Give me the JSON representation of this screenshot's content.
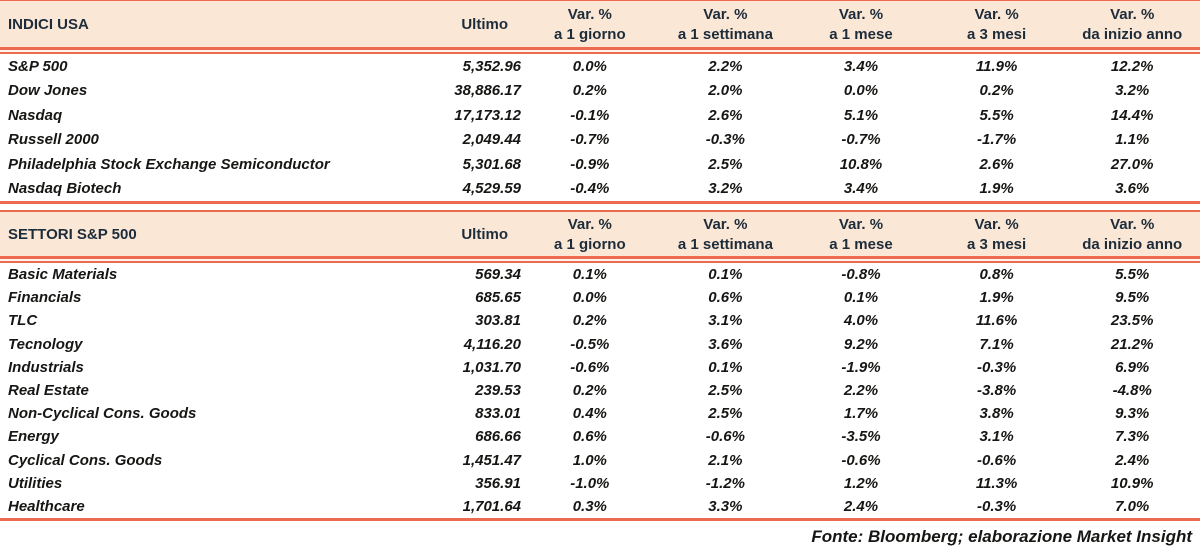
{
  "columns": {
    "ultimo": "Ultimo",
    "var_label": "Var. %",
    "periods": [
      "a 1 giorno",
      "a 1 settimana",
      "a 1 mese",
      "a 3 mesi",
      "da inizio anno"
    ]
  },
  "tables": [
    {
      "title": "INDICI USA",
      "rows": [
        {
          "label": "S&P 500",
          "ultimo": "5,352.96",
          "values": [
            "0.0%",
            "2.2%",
            "3.4%",
            "11.9%",
            "12.2%"
          ]
        },
        {
          "label": "Dow Jones",
          "ultimo": "38,886.17",
          "values": [
            "0.2%",
            "2.0%",
            "0.0%",
            "0.2%",
            "3.2%"
          ]
        },
        {
          "label": "Nasdaq",
          "ultimo": "17,173.12",
          "values": [
            "-0.1%",
            "2.6%",
            "5.1%",
            "5.5%",
            "14.4%"
          ]
        },
        {
          "label": "Russell 2000",
          "ultimo": "2,049.44",
          "values": [
            "-0.7%",
            "-0.3%",
            "-0.7%",
            "-1.7%",
            "1.1%"
          ]
        },
        {
          "label": "Philadelphia Stock Exchange Semiconductor",
          "ultimo": "5,301.68",
          "values": [
            "-0.9%",
            "2.5%",
            "10.8%",
            "2.6%",
            "27.0%"
          ]
        },
        {
          "label": "Nasdaq Biotech",
          "ultimo": "4,529.59",
          "values": [
            "-0.4%",
            "3.2%",
            "3.4%",
            "1.9%",
            "3.6%"
          ]
        }
      ]
    },
    {
      "title": "SETTORI S&P 500",
      "rows": [
        {
          "label": "Basic Materials",
          "ultimo": "569.34",
          "values": [
            "0.1%",
            "0.1%",
            "-0.8%",
            "0.8%",
            "5.5%"
          ]
        },
        {
          "label": "Financials",
          "ultimo": "685.65",
          "values": [
            "0.0%",
            "0.6%",
            "0.1%",
            "1.9%",
            "9.5%"
          ]
        },
        {
          "label": "TLC",
          "ultimo": "303.81",
          "values": [
            "0.2%",
            "3.1%",
            "4.0%",
            "11.6%",
            "23.5%"
          ]
        },
        {
          "label": "Tecnology",
          "ultimo": "4,116.20",
          "values": [
            "-0.5%",
            "3.6%",
            "9.2%",
            "7.1%",
            "21.2%"
          ]
        },
        {
          "label": "Industrials",
          "ultimo": "1,031.70",
          "values": [
            "-0.6%",
            "0.1%",
            "-1.9%",
            "-0.3%",
            "6.9%"
          ]
        },
        {
          "label": "Real Estate",
          "ultimo": "239.53",
          "values": [
            "0.2%",
            "2.5%",
            "2.2%",
            "-3.8%",
            "-4.8%"
          ]
        },
        {
          "label": "Non-Cyclical Cons. Goods",
          "ultimo": "833.01",
          "values": [
            "0.4%",
            "2.5%",
            "1.7%",
            "3.8%",
            "9.3%"
          ]
        },
        {
          "label": "Energy",
          "ultimo": "686.66",
          "values": [
            "0.6%",
            "-0.6%",
            "-3.5%",
            "3.1%",
            "7.3%"
          ]
        },
        {
          "label": "Cyclical Cons. Goods",
          "ultimo": "1,451.47",
          "values": [
            "1.0%",
            "2.1%",
            "-0.6%",
            "-0.6%",
            "2.4%"
          ]
        },
        {
          "label": "Utilities",
          "ultimo": "356.91",
          "values": [
            "-1.0%",
            "-1.2%",
            "1.2%",
            "11.3%",
            "10.9%"
          ]
        },
        {
          "label": "Healthcare",
          "ultimo": "1,701.64",
          "values": [
            "0.3%",
            "3.3%",
            "2.4%",
            "-0.3%",
            "7.0%"
          ]
        }
      ]
    }
  ],
  "footer": {
    "source": "Fonte: Bloomberg; elaborazione Market Insight"
  },
  "colors": {
    "accent_line": "#ec6a50",
    "header_bg": "#fbe7d6",
    "header_text": "#1d2c3a",
    "body_text": "#161614"
  }
}
